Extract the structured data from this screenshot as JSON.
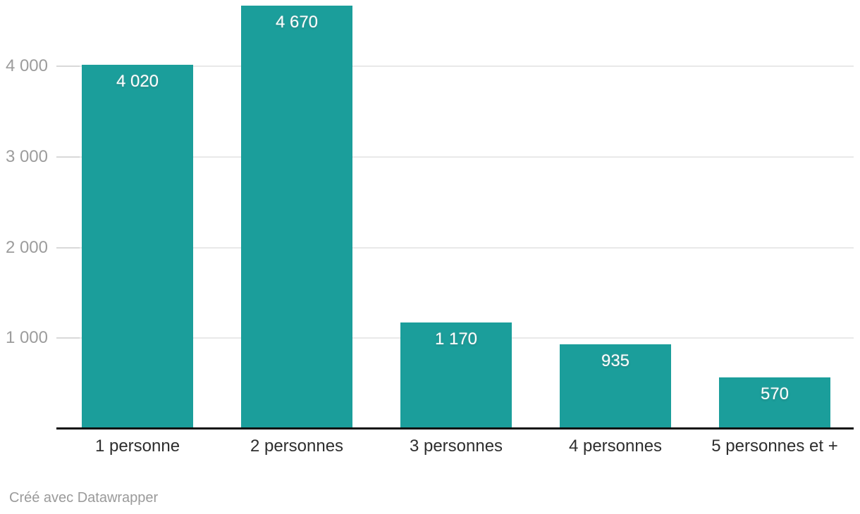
{
  "chart_data": {
    "type": "bar",
    "title": "",
    "xlabel": "",
    "ylabel": "",
    "categories": [
      "1 personne",
      "2 personnes",
      "3 personnes",
      "4 personnes",
      "5 personnes et +"
    ],
    "values": [
      4020,
      4670,
      1170,
      935,
      570
    ],
    "value_labels": [
      "4 020",
      "4 670",
      "1 170",
      "935",
      "570"
    ],
    "y_axis": {
      "range": [
        0,
        4730
      ],
      "ticks": [
        {
          "value": 1000,
          "label": "1 000"
        },
        {
          "value": 2000,
          "label": "2 000"
        },
        {
          "value": 3000,
          "label": "3 000"
        },
        {
          "value": 4000,
          "label": "4 000"
        }
      ]
    },
    "grid": "horizontal gridlines",
    "legend": "none"
  },
  "colors": {
    "bar": "#1b9e9b",
    "grid": "#e9e9e9",
    "tick": "#d9d9d9",
    "axis": "#111111",
    "value_label": "#ffffff",
    "y_tick_label": "#9c9c9c",
    "x_tick_label": "#2e2e2e",
    "attribution": "#9a9a9a",
    "background": "#ffffff"
  },
  "footer": {
    "attribution": "Créé avec Datawrapper"
  }
}
